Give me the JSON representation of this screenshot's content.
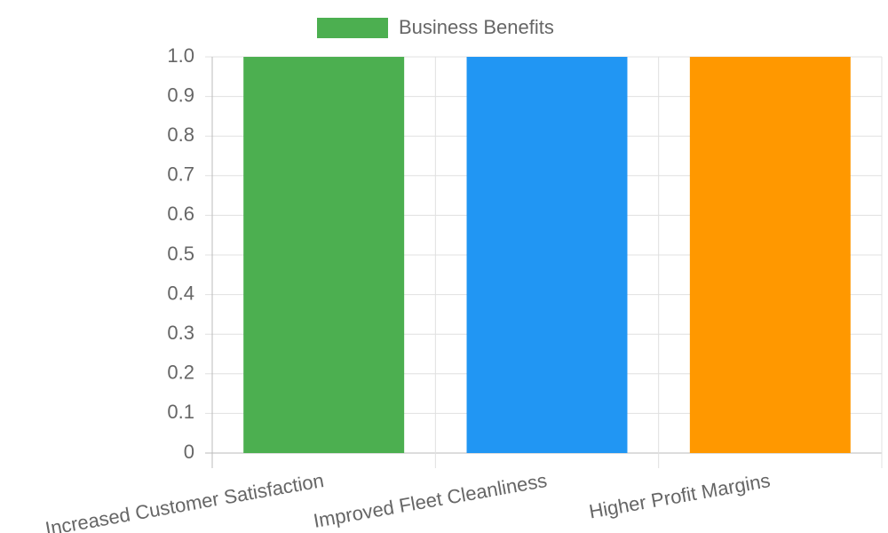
{
  "chart_data": {
    "type": "bar",
    "categories": [
      "Increased Customer Satisfaction",
      "Improved Fleet Cleanliness",
      "Higher Profit Margins"
    ],
    "series": [
      {
        "name": "Business Benefits",
        "colors": [
          "#4caf50",
          "#2196f3",
          "#ff9800"
        ],
        "values": [
          1,
          1,
          1
        ]
      }
    ],
    "ylim": [
      0,
      1
    ],
    "yticks": [
      0,
      0.1,
      0.2,
      0.3,
      0.4,
      0.5,
      0.6,
      0.7,
      0.8,
      0.9,
      {
        "value": 1,
        "label": "1.0"
      }
    ],
    "grid": true,
    "legend": "top"
  }
}
